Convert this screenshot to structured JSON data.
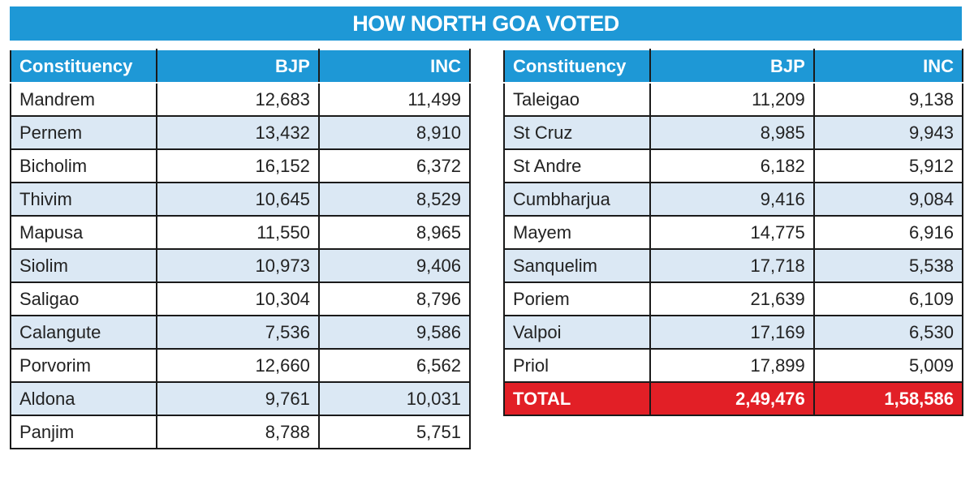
{
  "title": "HOW NORTH GOA VOTED",
  "tables": [
    {
      "header": [
        "Constituency",
        "BJP",
        "INC"
      ],
      "rows": [
        [
          "Mandrem",
          "12,683",
          "11,499"
        ],
        [
          "Pernem",
          "13,432",
          "8,910"
        ],
        [
          "Bicholim",
          "16,152",
          "6,372"
        ],
        [
          "Thivim",
          "10,645",
          "8,529"
        ],
        [
          "Mapusa",
          "11,550",
          "8,965"
        ],
        [
          "Siolim",
          "10,973",
          "9,406"
        ],
        [
          "Saligao",
          "10,304",
          "8,796"
        ],
        [
          "Calangute",
          "7,536",
          "9,586"
        ],
        [
          "Porvorim",
          "12,660",
          "6,562"
        ],
        [
          "Aldona",
          "9,761",
          "10,031"
        ],
        [
          "Panjim",
          "8,788",
          "5,751"
        ]
      ]
    },
    {
      "header": [
        "Constituency",
        "BJP",
        "INC"
      ],
      "rows": [
        [
          "Taleigao",
          "11,209",
          "9,138"
        ],
        [
          "St Cruz",
          "8,985",
          "9,943"
        ],
        [
          "St Andre",
          "6,182",
          "5,912"
        ],
        [
          "Cumbharjua",
          "9,416",
          "9,084"
        ],
        [
          "Mayem",
          "14,775",
          "6,916"
        ],
        [
          "Sanquelim",
          "17,718",
          "5,538"
        ],
        [
          "Poriem",
          "21,639",
          "6,109"
        ],
        [
          "Valpoi",
          "17,169",
          "6,530"
        ],
        [
          "Priol",
          "17,899",
          "5,009"
        ]
      ],
      "total": [
        "TOTAL",
        "2,49,476",
        "1,58,586"
      ]
    }
  ]
}
